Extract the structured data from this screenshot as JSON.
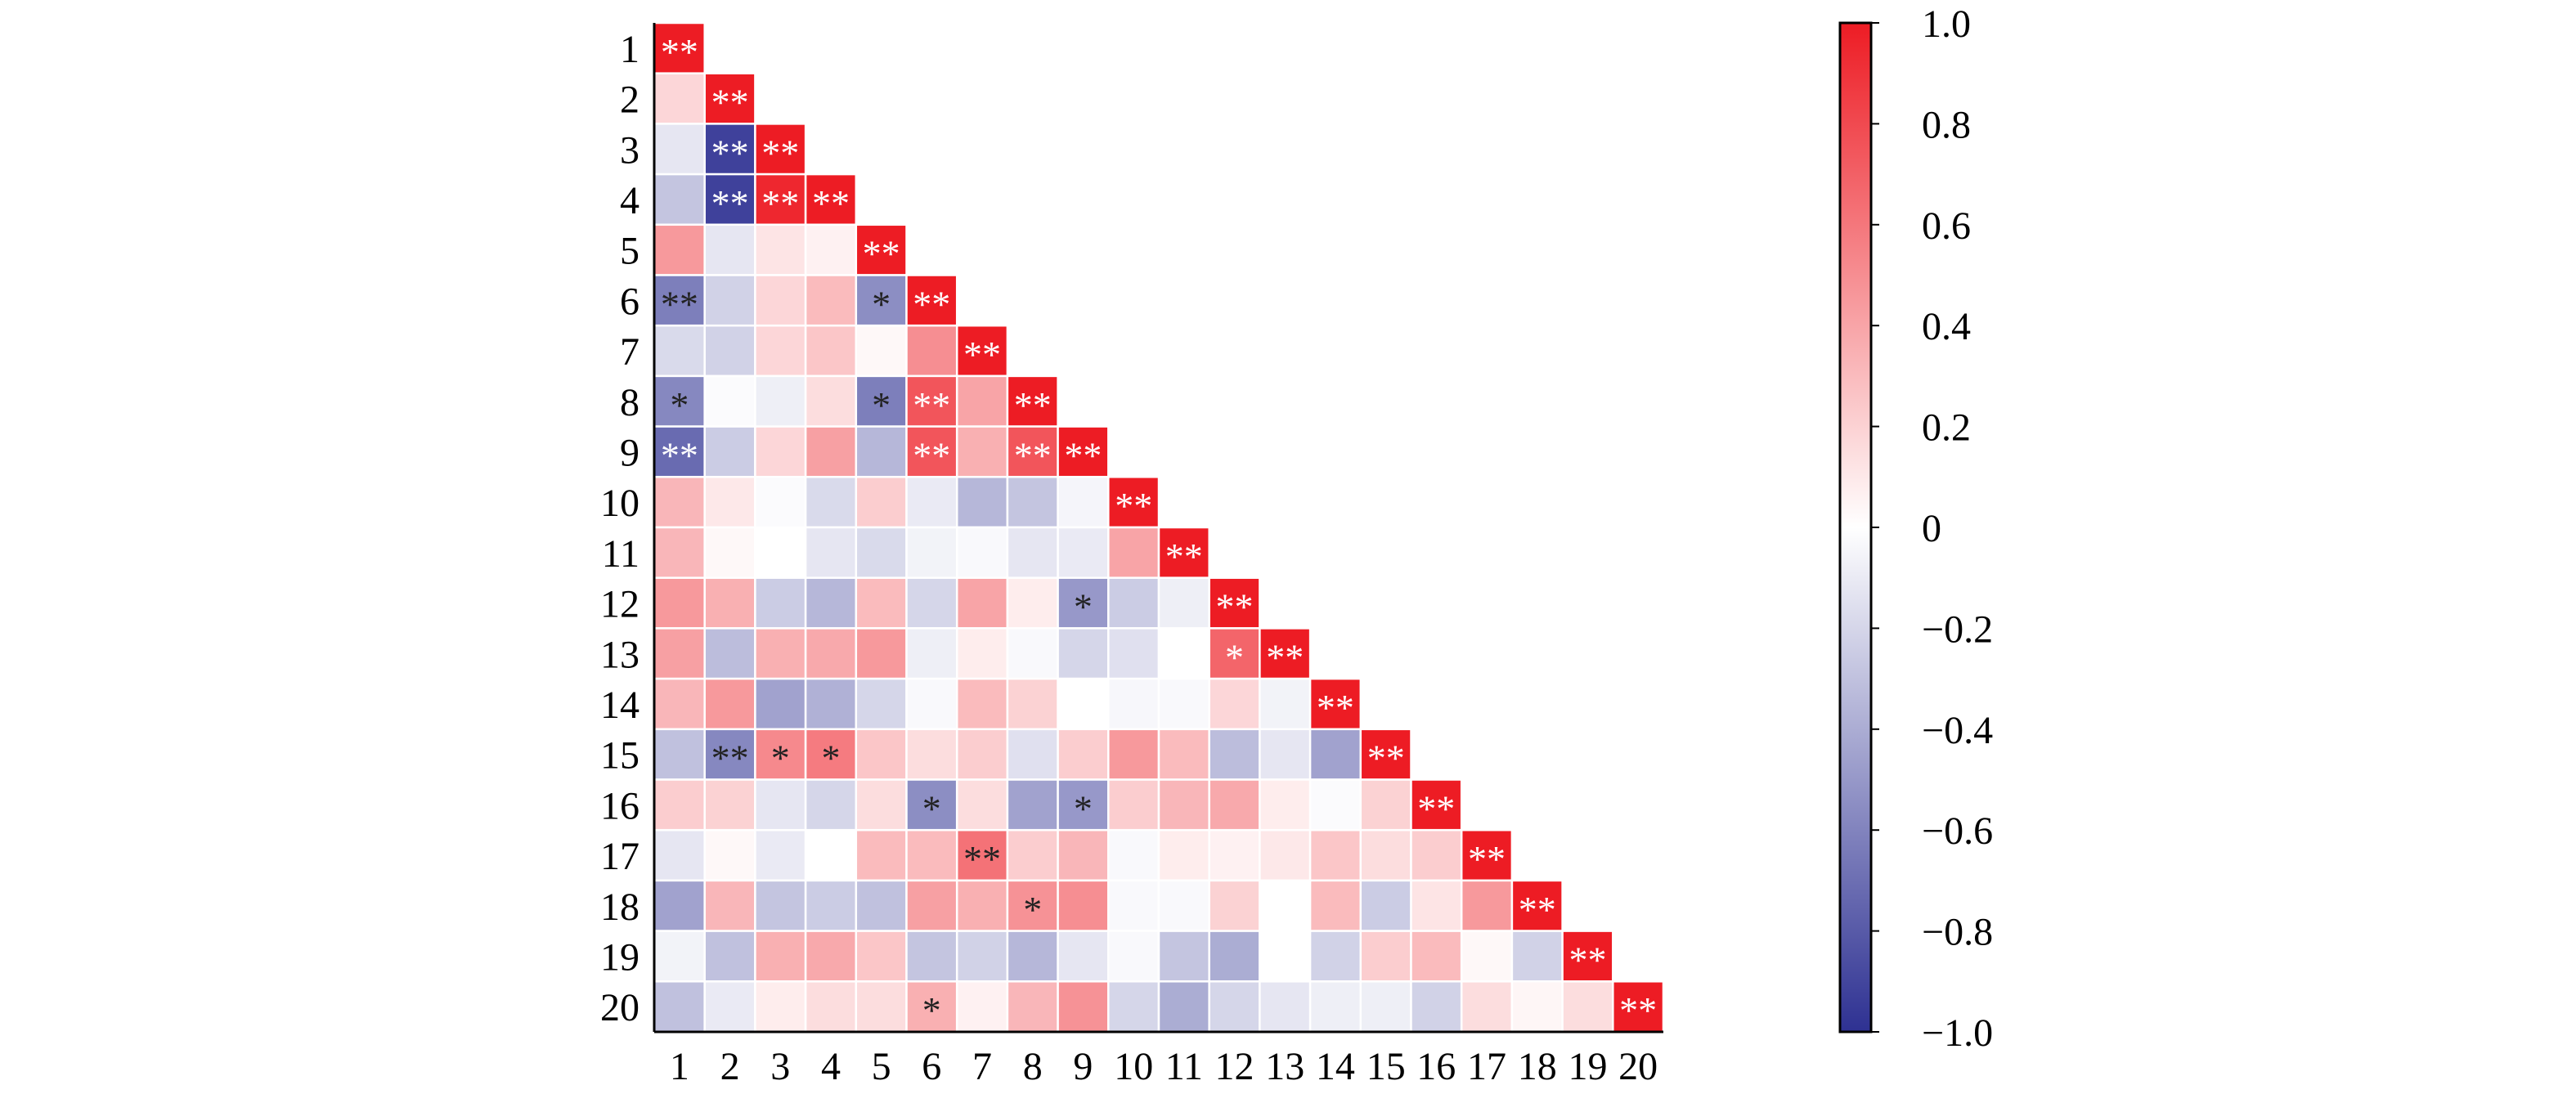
{
  "chart_data": {
    "type": "heatmap",
    "shape": "lower-triangle",
    "title": "",
    "xlabel": "",
    "ylabel": "",
    "row_labels": [
      "1",
      "2",
      "3",
      "4",
      "5",
      "6",
      "7",
      "8",
      "9",
      "10",
      "11",
      "12",
      "13",
      "14",
      "15",
      "16",
      "17",
      "18",
      "19",
      "20"
    ],
    "col_labels": [
      "1",
      "2",
      "3",
      "4",
      "5",
      "6",
      "7",
      "8",
      "9",
      "10",
      "11",
      "12",
      "13",
      "14",
      "15",
      "16",
      "17",
      "18",
      "19",
      "20"
    ],
    "values": [
      [
        1.0
      ],
      [
        0.18,
        1.0
      ],
      [
        -0.12,
        -0.92,
        1.0
      ],
      [
        -0.28,
        -0.92,
        0.95,
        1.0
      ],
      [
        0.45,
        -0.12,
        0.12,
        0.06,
        1.0
      ],
      [
        -0.62,
        -0.22,
        0.18,
        0.3,
        -0.55,
        1.0
      ],
      [
        -0.18,
        -0.22,
        0.18,
        0.25,
        0.03,
        0.5,
        1.0
      ],
      [
        -0.58,
        -0.02,
        -0.08,
        0.15,
        -0.62,
        0.75,
        0.4,
        1.0
      ],
      [
        -0.72,
        -0.25,
        0.18,
        0.42,
        -0.35,
        0.75,
        0.35,
        0.75,
        1.0
      ],
      [
        0.32,
        0.1,
        -0.02,
        -0.18,
        0.22,
        -0.1,
        -0.35,
        -0.28,
        -0.05,
        1.0
      ],
      [
        0.32,
        0.03,
        0.0,
        -0.12,
        -0.18,
        -0.06,
        -0.03,
        -0.12,
        -0.1,
        0.4,
        1.0
      ],
      [
        0.45,
        0.35,
        -0.25,
        -0.35,
        0.3,
        -0.2,
        0.4,
        0.08,
        -0.5,
        -0.25,
        -0.08,
        1.0
      ],
      [
        0.42,
        -0.32,
        0.35,
        0.38,
        0.45,
        -0.08,
        0.08,
        -0.03,
        -0.2,
        -0.15,
        0.0,
        0.68,
        1.0
      ],
      [
        0.32,
        0.45,
        -0.45,
        -0.38,
        -0.2,
        -0.03,
        0.3,
        0.2,
        0.0,
        -0.04,
        -0.03,
        0.18,
        -0.06,
        1.0
      ],
      [
        -0.3,
        -0.58,
        0.52,
        0.58,
        0.25,
        0.15,
        0.22,
        -0.15,
        0.22,
        0.45,
        0.3,
        -0.32,
        -0.12,
        -0.45,
        1.0
      ],
      [
        0.22,
        0.2,
        -0.12,
        -0.2,
        0.15,
        -0.55,
        0.15,
        -0.45,
        -0.5,
        0.22,
        0.32,
        0.38,
        0.08,
        -0.02,
        0.2,
        1.0
      ],
      [
        -0.12,
        0.03,
        -0.1,
        0.0,
        0.3,
        0.3,
        0.62,
        0.22,
        0.32,
        -0.03,
        0.08,
        0.06,
        0.1,
        0.25,
        0.15,
        0.22,
        1.0
      ],
      [
        -0.45,
        0.32,
        -0.28,
        -0.25,
        -0.3,
        0.42,
        0.35,
        0.48,
        0.5,
        -0.03,
        -0.03,
        0.2,
        0.0,
        0.3,
        -0.25,
        0.12,
        0.45,
        1.0
      ],
      [
        -0.06,
        -0.3,
        0.35,
        0.38,
        0.25,
        -0.28,
        -0.22,
        -0.35,
        -0.12,
        -0.03,
        -0.28,
        -0.4,
        0.0,
        -0.22,
        0.22,
        0.3,
        0.03,
        -0.22,
        1.0
      ],
      [
        -0.3,
        -0.1,
        0.08,
        0.15,
        0.15,
        0.35,
        0.06,
        0.32,
        0.48,
        -0.2,
        -0.4,
        -0.2,
        -0.12,
        -0.08,
        -0.08,
        -0.22,
        0.15,
        0.04,
        0.15,
        1.0
      ]
    ],
    "significance": [
      [
        "**"
      ],
      [
        "",
        "**"
      ],
      [
        "",
        "**",
        "**"
      ],
      [
        "",
        "**",
        "**",
        "**"
      ],
      [
        "",
        "",
        "",
        "",
        "**"
      ],
      [
        "**",
        "",
        "",
        "",
        "*",
        "**"
      ],
      [
        "",
        "",
        "",
        "",
        "",
        "",
        "**"
      ],
      [
        "*",
        "",
        "",
        "",
        "*",
        "**",
        "",
        "**"
      ],
      [
        "**",
        "",
        "",
        "",
        "",
        "**",
        "",
        "**",
        "**"
      ],
      [
        "",
        "",
        "",
        "",
        "",
        "",
        "",
        "",
        "",
        "**"
      ],
      [
        "",
        "",
        "",
        "",
        "",
        "",
        "",
        "",
        "",
        "",
        "**"
      ],
      [
        "",
        "",
        "",
        "",
        "",
        "",
        "",
        "",
        "*",
        "",
        "",
        "**"
      ],
      [
        "",
        "",
        "",
        "",
        "",
        "",
        "",
        "",
        "",
        "",
        "",
        "*",
        "**"
      ],
      [
        "",
        "",
        "",
        "",
        "",
        "",
        "",
        "",
        "",
        "",
        "",
        "",
        "",
        "**"
      ],
      [
        "",
        "**",
        "*",
        "*",
        "",
        "",
        "",
        "",
        "",
        "",
        "",
        "",
        "",
        "",
        "**"
      ],
      [
        "",
        "",
        "",
        "",
        "",
        "*",
        "",
        "",
        "*",
        "",
        "",
        "",
        "",
        "",
        "",
        "**"
      ],
      [
        "",
        "",
        "",
        "",
        "",
        "",
        "**",
        "",
        "",
        "",
        "",
        "",
        "",
        "",
        "",
        "",
        "**"
      ],
      [
        "",
        "",
        "",
        "",
        "",
        "",
        "",
        "*",
        "",
        "",
        "",
        "",
        "",
        "",
        "",
        "",
        "",
        "**"
      ],
      [
        "",
        "",
        "",
        "",
        "",
        "",
        "",
        "",
        "",
        "",
        "",
        "",
        "",
        "",
        "",
        "",
        "",
        "",
        "**"
      ],
      [
        "",
        "",
        "",
        "",
        "",
        "*",
        "",
        "",
        "",
        "",
        "",
        "",
        "",
        "",
        "",
        "",
        "",
        "",
        "",
        "**"
      ]
    ],
    "colorbar": {
      "min": -1.0,
      "max": 1.0,
      "ticks": [
        "1.0",
        "0.8",
        "0.6",
        "0.4",
        "0.2",
        "0",
        "−0.2",
        "−0.4",
        "−0.6",
        "−0.8",
        "−1.0"
      ],
      "negative_color": "#2e3192",
      "zero_color": "#ffffff",
      "positive_color": "#ed1c24"
    },
    "grid": false,
    "legend": "colorbar-right",
    "star_text_color_light": "#ffffff",
    "star_text_color_dark": "#222222"
  }
}
